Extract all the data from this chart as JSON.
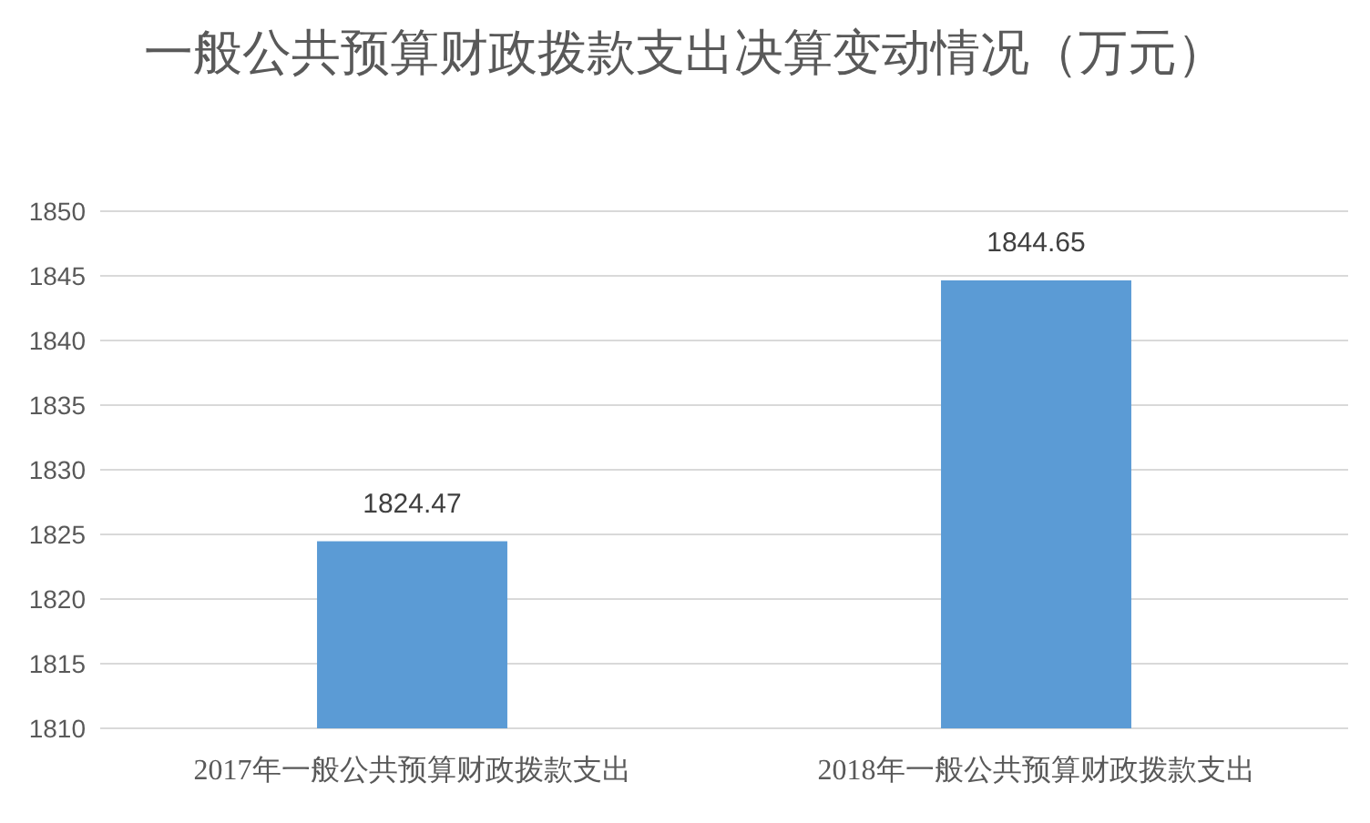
{
  "chart_data": {
    "type": "bar",
    "title": "一般公共预算财政拨款支出决算变动情况（万元）",
    "categories": [
      "2017年一般公共预算财政拨款支出",
      "2018年一般公共预算财政拨款支出"
    ],
    "values": [
      1824.47,
      1844.65
    ],
    "color": "#5b9bd5",
    "ylim": [
      1810,
      1850
    ],
    "yticks": [
      1810,
      1815,
      1820,
      1825,
      1830,
      1835,
      1840,
      1845,
      1850
    ],
    "grid": "y",
    "data_labels": true
  }
}
